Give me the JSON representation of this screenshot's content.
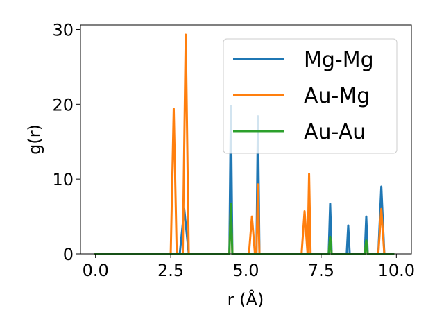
{
  "chart_data": {
    "type": "line",
    "title": "",
    "xlabel": "r (Å)",
    "ylabel": "g(r)",
    "xlim": [
      -0.5,
      10.5
    ],
    "ylim": [
      0,
      30.6
    ],
    "xticks": [
      0.0,
      2.5,
      5.0,
      7.5,
      10.0
    ],
    "xtick_labels": [
      "0.0",
      "2.5",
      "5.0",
      "7.5",
      "10.0"
    ],
    "yticks": [
      0,
      10,
      20,
      30
    ],
    "ytick_labels": [
      "0",
      "10",
      "20",
      "30"
    ],
    "grid": false,
    "legend_position": "top-right",
    "series": [
      {
        "name": "Mg-Mg",
        "color": "#1f77b4",
        "x": [
          0.0,
          2.8,
          2.95,
          3.1,
          4.45,
          4.5,
          4.55,
          5.35,
          5.4,
          5.45,
          7.75,
          7.8,
          7.85,
          8.35,
          8.4,
          8.45,
          8.95,
          9.0,
          9.05,
          9.4,
          9.5,
          9.6,
          9.9
        ],
        "values": [
          0,
          0,
          6.0,
          0,
          0,
          19.8,
          0,
          0,
          18.4,
          0,
          0,
          6.7,
          0,
          0,
          3.8,
          0,
          0,
          5.0,
          0,
          0,
          9.0,
          0,
          0
        ]
      },
      {
        "name": "Au-Mg",
        "color": "#ff7f0e",
        "x": [
          0.0,
          2.5,
          2.6,
          2.7,
          2.9,
          3.0,
          3.1,
          4.45,
          4.5,
          4.55,
          5.1,
          5.2,
          5.3,
          5.35,
          5.4,
          5.45,
          6.85,
          6.95,
          7.05,
          7.1,
          7.15,
          7.75,
          7.8,
          7.85,
          8.95,
          9.0,
          9.05,
          9.4,
          9.5,
          9.6,
          9.9
        ],
        "values": [
          0,
          0,
          19.4,
          0,
          0,
          29.3,
          0,
          0,
          6.6,
          0,
          0,
          5.0,
          0,
          0,
          9.3,
          0,
          0,
          5.7,
          0,
          10.7,
          0,
          0,
          2.2,
          0,
          0,
          1.7,
          0,
          0,
          6.0,
          0,
          0
        ]
      },
      {
        "name": "Au-Au",
        "color": "#2ca02c",
        "x": [
          0.0,
          4.45,
          4.5,
          4.55,
          7.75,
          7.8,
          7.85,
          8.95,
          9.0,
          9.05,
          9.9
        ],
        "values": [
          0,
          0,
          6.7,
          0,
          0,
          2.3,
          0,
          0,
          1.8,
          0,
          0
        ]
      }
    ]
  }
}
